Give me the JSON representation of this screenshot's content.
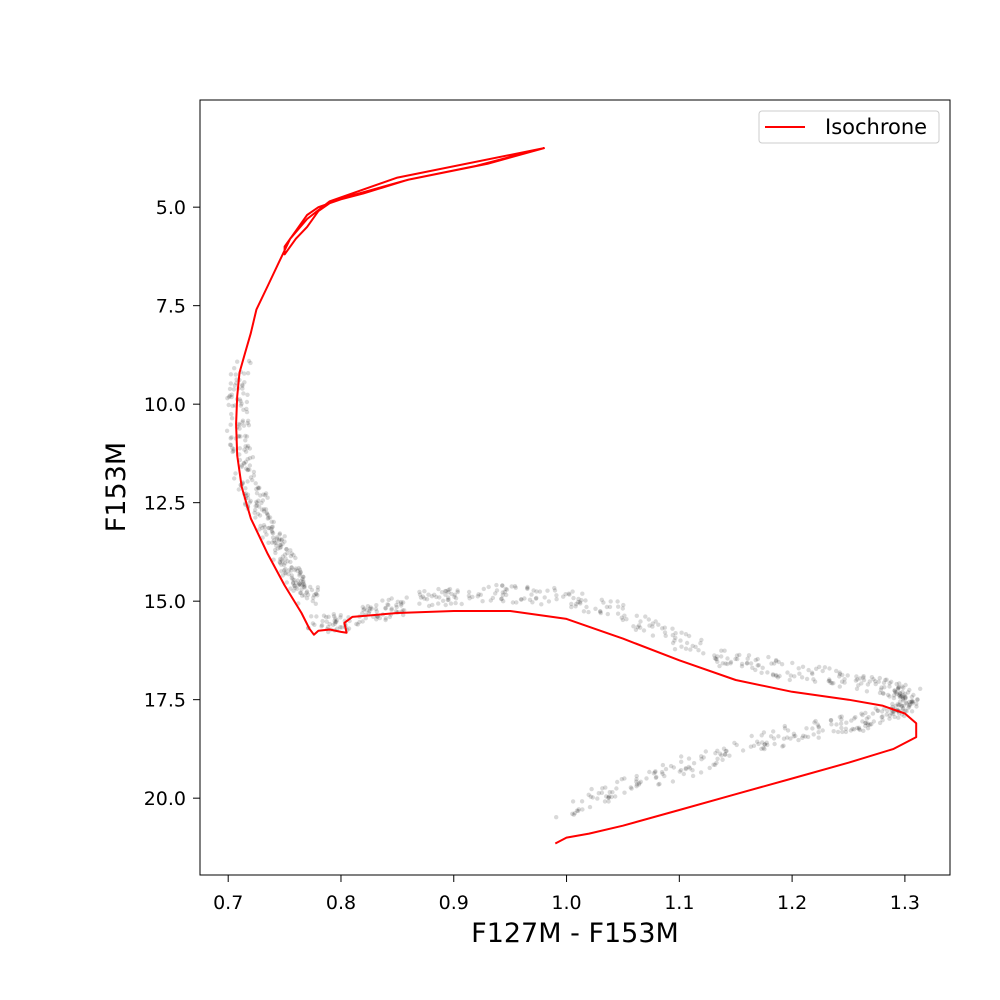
{
  "chart_data": {
    "type": "scatter",
    "title": "",
    "xlabel": "F127M - F153M",
    "ylabel": "F153M",
    "xlim": [
      0.675,
      1.34
    ],
    "ylim": [
      21.95,
      2.28
    ],
    "y_inverted": true,
    "grid": false,
    "legend_placement": "top-right",
    "xticks": [
      0.7,
      0.8,
      0.9,
      1.0,
      1.1,
      1.2,
      1.3
    ],
    "xtick_labels": [
      "0.7",
      "0.8",
      "0.9",
      "1.0",
      "1.1",
      "1.2",
      "1.3"
    ],
    "yticks": [
      5.0,
      7.5,
      10.0,
      12.5,
      15.0,
      17.5,
      20.0
    ],
    "ytick_labels": [
      "5.0",
      "7.5",
      "10.0",
      "12.5",
      "15.0",
      "17.5",
      "20.0"
    ],
    "series": [
      {
        "name": "Isochrone",
        "kind": "line",
        "color": "#ff0000",
        "x": [
          0.98,
          0.93,
          0.86,
          0.81,
          0.79,
          0.78,
          0.77,
          0.76,
          0.75,
          0.75,
          0.76,
          0.77,
          0.78,
          0.79,
          0.8,
          0.82,
          0.86,
          0.92,
          0.98,
          0.85,
          0.79,
          0.77,
          0.755,
          0.745,
          0.735,
          0.725,
          0.72,
          0.715,
          0.71,
          0.708,
          0.707,
          0.708,
          0.712,
          0.72,
          0.735,
          0.75,
          0.765,
          0.772,
          0.776,
          0.78,
          0.79,
          0.8,
          0.805,
          0.803,
          0.81,
          0.85,
          0.9,
          0.95,
          1.0,
          1.05,
          1.1,
          1.15,
          1.2,
          1.25,
          1.28,
          1.3,
          1.31,
          1.31,
          1.29,
          1.25,
          1.2,
          1.15,
          1.1,
          1.05,
          1.02,
          1.0,
          0.99
        ],
        "y": [
          3.5,
          3.9,
          4.3,
          4.7,
          4.9,
          5.0,
          5.2,
          5.6,
          6.0,
          6.2,
          5.8,
          5.5,
          5.1,
          4.9,
          4.8,
          4.65,
          4.3,
          3.95,
          3.5,
          4.25,
          4.85,
          5.3,
          5.8,
          6.4,
          7.0,
          7.6,
          8.2,
          8.7,
          9.2,
          9.8,
          10.5,
          11.3,
          12.1,
          12.9,
          13.8,
          14.6,
          15.3,
          15.7,
          15.85,
          15.75,
          15.72,
          15.78,
          15.8,
          15.55,
          15.4,
          15.3,
          15.25,
          15.25,
          15.45,
          15.95,
          16.5,
          17.0,
          17.3,
          17.5,
          17.65,
          17.85,
          18.1,
          18.45,
          18.75,
          19.1,
          19.5,
          19.9,
          20.3,
          20.7,
          20.9,
          21.0,
          21.15
        ]
      }
    ],
    "scatter_points": {
      "color": "#000000",
      "opacity": 0.15,
      "sequences": [
        {
          "x": [
            0.71,
            0.708,
            0.71,
            0.715,
            0.725,
            0.735,
            0.745,
            0.755,
            0.765,
            0.775
          ],
          "y": [
            9.0,
            10.0,
            11.0,
            11.8,
            12.5,
            13.1,
            13.7,
            14.2,
            14.6,
            15.0
          ]
        },
        {
          "x": [
            0.78,
            0.8,
            0.83,
            0.86,
            0.9,
            0.95,
            1.0,
            1.05,
            1.1,
            1.15,
            1.2,
            1.25,
            1.29,
            1.305,
            1.3,
            1.28,
            1.25,
            1.2,
            1.15,
            1.1,
            1.05,
            1.0
          ],
          "y": [
            15.6,
            15.55,
            15.3,
            15.0,
            14.85,
            14.8,
            14.9,
            15.3,
            16.0,
            16.5,
            16.8,
            17.0,
            17.2,
            17.45,
            17.7,
            17.9,
            18.1,
            18.4,
            18.8,
            19.25,
            19.7,
            20.35
          ]
        }
      ]
    }
  }
}
